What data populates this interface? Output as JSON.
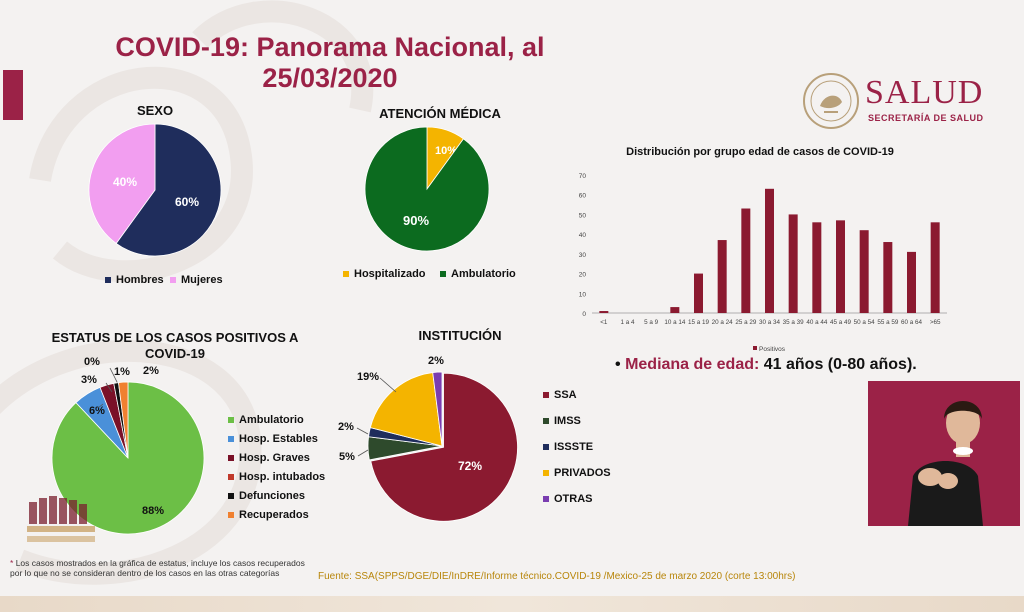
{
  "header": {
    "title_line1": "COVID-19: Panorama Nacional, al",
    "title_line2": "25/03/2020"
  },
  "logo": {
    "name": "SALUD",
    "subtitle": "SECRETARÍA DE SALUD",
    "seal_text": "ESTADOS UNIDOS MEXICANOS"
  },
  "colors": {
    "accent": "#9b2247",
    "navy": "#1f2d5c",
    "pink": "#f29ef0",
    "green": "#0c6b1f",
    "orange": "#f4b400",
    "light_green": "#6cbf46",
    "blue": "#4a90d9",
    "dark_red": "#7a1128",
    "red": "#c0392b",
    "black": "#111111",
    "peach": "#f08030",
    "dark_green": "#2e4a2c",
    "purple": "#7a3db0"
  },
  "chart_data": [
    {
      "type": "pie",
      "title": "SEXO",
      "labels": [
        "Hombres",
        "Mujeres"
      ],
      "values": [
        60,
        40
      ],
      "value_labels": [
        "60%",
        "40%"
      ],
      "colors": [
        "#1f2d5c",
        "#f29ef0"
      ]
    },
    {
      "type": "pie",
      "title": "ATENCIÓN MÉDICA",
      "labels": [
        "Hospitalizado",
        "Ambulatorio"
      ],
      "values": [
        10,
        90
      ],
      "value_labels": [
        "10%",
        "90%"
      ],
      "colors": [
        "#f4b400",
        "#0c6b1f"
      ]
    },
    {
      "type": "pie",
      "title": "ESTATUS DE LOS CASOS POSITIVOS A COVID-19",
      "title_line1": "ESTATUS DE LOS CASOS POSITIVOS A",
      "title_line2": "COVID-19",
      "labels": [
        "Ambulatorio",
        "Hosp. Estables",
        "Hosp. Graves",
        "Hosp. intubados",
        "Defunciones",
        "Recuperados"
      ],
      "values": [
        88,
        6,
        3,
        0,
        1,
        2
      ],
      "value_labels": [
        "88%",
        "6%",
        "3%",
        "0%",
        "1%",
        "2%"
      ],
      "colors": [
        "#6cbf46",
        "#4a90d9",
        "#7a1128",
        "#c0392b",
        "#111111",
        "#f08030"
      ]
    },
    {
      "type": "pie",
      "title": "INSTITUCIÓN",
      "labels": [
        "SSA",
        "IMSS",
        "ISSSTE",
        "PRIVADOS",
        "OTRAS"
      ],
      "values": [
        72,
        5,
        2,
        19,
        2
      ],
      "value_labels": [
        "72%",
        "5%",
        "2%",
        "19%",
        "2%"
      ],
      "colors": [
        "#8b1a30",
        "#2e4a2c",
        "#1f2d5c",
        "#f4b400",
        "#7a3db0"
      ]
    },
    {
      "type": "bar",
      "title": "Distribución por grupo edad de casos de COVID-19",
      "categories": [
        "<1",
        "1 a 4",
        "5 a 9",
        "10 a 14",
        "15 a 19",
        "20 a 24",
        "25 a 29",
        "30 a 34",
        "35 a 39",
        "40 a 44",
        "45 a 49",
        "50 a 54",
        "55 a 59",
        "60 a 64",
        ">65"
      ],
      "series": [
        {
          "name": "Positivos",
          "values": [
            1,
            0,
            0,
            3,
            20,
            37,
            53,
            63,
            50,
            46,
            47,
            42,
            36,
            31,
            46
          ],
          "color": "#8b1a30"
        }
      ],
      "ylim": [
        0,
        70
      ],
      "yticks": [
        0,
        10,
        20,
        30,
        40,
        50,
        60,
        70
      ],
      "grid": false,
      "legend": "bottom-left"
    }
  ],
  "median": {
    "bullet": "•",
    "label": "Mediana de edad:",
    "value": "41 años (0-80 años)."
  },
  "footnote": {
    "marker": "*",
    "text": "Los casos mostrados en la gráfica de estatus, incluye los casos recuperados por lo que no se consideran dentro de los casos en las otras categorías"
  },
  "source": "Fuente: SSA(SPPS/DGE/DIE/InDRE/Informe técnico.COVID-19 /Mexico-25 de marzo 2020 (corte 13:00hrs)"
}
